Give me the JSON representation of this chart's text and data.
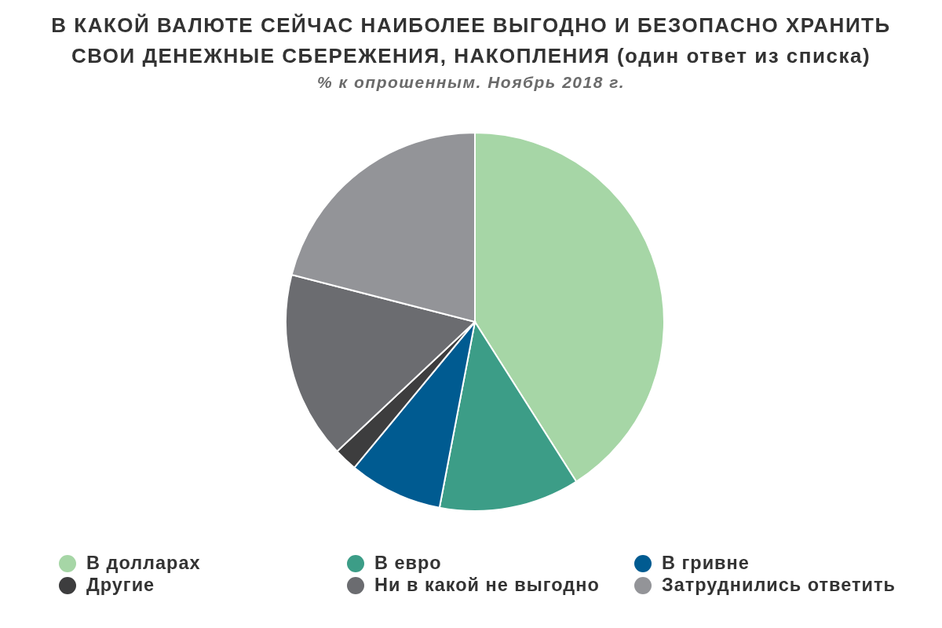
{
  "chart_data": {
    "type": "pie",
    "title": "В КАКОЙ ВАЛЮТЕ СЕЙЧАС НАИБОЛЕЕ ВЫГОДНО И БЕЗОПАСНО ХРАНИТЬ СВОИ ДЕНЕЖНЫЕ СБЕРЕЖЕНИЯ, НАКОПЛЕНИЯ (один ответ из списка)",
    "subtitle": "% к опрошенным. Ноябрь 2018 г.",
    "categories": [
      "В долларах",
      "В евро",
      "В гривне",
      "Другие",
      "Ни в какой не выгодно",
      "Затруднились ответить"
    ],
    "values": [
      41,
      12,
      8,
      2,
      16,
      21
    ],
    "colors": [
      "#a6d6a6",
      "#3c9d87",
      "#005b91",
      "#3d3d3e",
      "#6b6c70",
      "#939498"
    ],
    "legend": "bottom"
  }
}
